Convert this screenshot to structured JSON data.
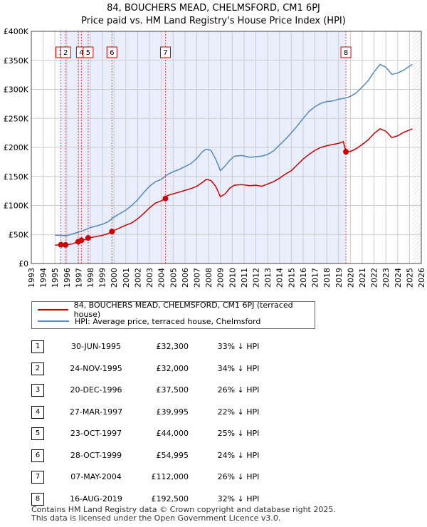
{
  "title_line1": "84, BOUCHERS MEAD, CHELMSFORD, CM1 6PJ",
  "title_line2": "Price paid vs. HM Land Registry's House Price Index (HPI)",
  "colors": {
    "property": "#cc0000",
    "hpi": "#5588bb",
    "shade": "#e8eefb",
    "grid": "#cccccc"
  },
  "chart_data": {
    "type": "line",
    "title": "84, BOUCHERS MEAD, CHELMSFORD, CM1 6PJ",
    "subtitle": "Price paid vs. HM Land Registry's House Price Index (HPI)",
    "xlabel": "",
    "ylabel": "",
    "xlim": [
      1993,
      2026
    ],
    "ylim": [
      0,
      400000
    ],
    "x_ticks": [
      1993,
      1994,
      1995,
      1996,
      1997,
      1998,
      1999,
      2000,
      2001,
      2002,
      2003,
      2004,
      2005,
      2006,
      2007,
      2008,
      2009,
      2010,
      2011,
      2012,
      2013,
      2014,
      2015,
      2016,
      2017,
      2018,
      2019,
      2020,
      2021,
      2022,
      2023,
      2024,
      2025,
      2026
    ],
    "y_ticks": [
      0,
      50000,
      100000,
      150000,
      200000,
      250000,
      300000,
      350000,
      400000
    ],
    "y_tick_labels": [
      "£0",
      "£50K",
      "£100K",
      "£150K",
      "£200K",
      "£250K",
      "£300K",
      "£350K",
      "£400K"
    ],
    "shaded_range": [
      1995.5,
      2019.62
    ],
    "data_end": 2025.25,
    "series": [
      {
        "name": "84, BOUCHERS MEAD, CHELMSFORD, CM1 6PJ (terraced house)",
        "color": "#cc0000",
        "points": [
          [
            1995.0,
            31500
          ],
          [
            1995.5,
            32300
          ],
          [
            1996.0,
            32000
          ],
          [
            1996.5,
            34000
          ],
          [
            1997.0,
            38000
          ],
          [
            1997.5,
            41000
          ],
          [
            1998.0,
            44500
          ],
          [
            1998.5,
            46500
          ],
          [
            1999.0,
            48500
          ],
          [
            1999.5,
            51500
          ],
          [
            2000.0,
            57000
          ],
          [
            2000.5,
            61500
          ],
          [
            2001.0,
            66000
          ],
          [
            2001.5,
            70000
          ],
          [
            2002.0,
            77000
          ],
          [
            2002.5,
            86000
          ],
          [
            2003.0,
            96000
          ],
          [
            2003.5,
            104000
          ],
          [
            2004.0,
            108000
          ],
          [
            2004.35,
            112000
          ],
          [
            2004.5,
            117000
          ],
          [
            2005.0,
            120000
          ],
          [
            2005.5,
            123000
          ],
          [
            2006.0,
            126000
          ],
          [
            2006.5,
            129000
          ],
          [
            2007.0,
            133000
          ],
          [
            2007.5,
            140000
          ],
          [
            2007.8,
            145000
          ],
          [
            2008.2,
            143000
          ],
          [
            2008.6,
            133000
          ],
          [
            2009.0,
            115000
          ],
          [
            2009.4,
            120000
          ],
          [
            2009.8,
            130000
          ],
          [
            2010.2,
            135000
          ],
          [
            2010.8,
            136000
          ],
          [
            2011.5,
            134000
          ],
          [
            2012.0,
            135000
          ],
          [
            2012.5,
            133000
          ],
          [
            2013.0,
            137000
          ],
          [
            2013.5,
            141000
          ],
          [
            2014.0,
            147000
          ],
          [
            2014.5,
            154000
          ],
          [
            2015.0,
            160000
          ],
          [
            2015.5,
            170000
          ],
          [
            2016.0,
            180000
          ],
          [
            2016.5,
            188000
          ],
          [
            2017.0,
            195000
          ],
          [
            2017.5,
            200000
          ],
          [
            2018.0,
            203000
          ],
          [
            2018.5,
            205000
          ],
          [
            2019.0,
            207000
          ],
          [
            2019.4,
            210000
          ],
          [
            2019.62,
            192500
          ],
          [
            2020.0,
            193000
          ],
          [
            2020.5,
            198000
          ],
          [
            2021.0,
            205000
          ],
          [
            2021.5,
            213000
          ],
          [
            2022.0,
            224000
          ],
          [
            2022.5,
            232000
          ],
          [
            2023.0,
            228000
          ],
          [
            2023.5,
            217000
          ],
          [
            2024.0,
            220000
          ],
          [
            2024.5,
            226000
          ],
          [
            2025.0,
            230000
          ],
          [
            2025.25,
            232000
          ]
        ]
      },
      {
        "name": "HPI: Average price, terraced house, Chelmsford",
        "color": "#5588bb",
        "points": [
          [
            1995.0,
            49000
          ],
          [
            1995.5,
            48500
          ],
          [
            1996.0,
            48000
          ],
          [
            1996.5,
            51000
          ],
          [
            1997.0,
            54000
          ],
          [
            1997.5,
            57500
          ],
          [
            1998.0,
            62000
          ],
          [
            1998.5,
            64500
          ],
          [
            1999.0,
            67500
          ],
          [
            1999.5,
            72000
          ],
          [
            2000.0,
            80000
          ],
          [
            2000.5,
            86000
          ],
          [
            2001.0,
            92000
          ],
          [
            2001.5,
            100000
          ],
          [
            2002.0,
            110000
          ],
          [
            2002.5,
            122000
          ],
          [
            2003.0,
            133000
          ],
          [
            2003.5,
            141000
          ],
          [
            2004.0,
            145000
          ],
          [
            2004.5,
            153000
          ],
          [
            2005.0,
            158000
          ],
          [
            2005.5,
            162000
          ],
          [
            2006.0,
            167000
          ],
          [
            2006.5,
            172000
          ],
          [
            2007.0,
            181000
          ],
          [
            2007.5,
            193000
          ],
          [
            2007.8,
            197000
          ],
          [
            2008.2,
            195000
          ],
          [
            2008.6,
            180000
          ],
          [
            2009.0,
            160000
          ],
          [
            2009.4,
            168000
          ],
          [
            2009.8,
            178000
          ],
          [
            2010.2,
            185000
          ],
          [
            2010.8,
            186000
          ],
          [
            2011.5,
            183000
          ],
          [
            2012.0,
            184000
          ],
          [
            2012.5,
            185000
          ],
          [
            2013.0,
            188000
          ],
          [
            2013.5,
            194000
          ],
          [
            2014.0,
            204000
          ],
          [
            2014.5,
            214000
          ],
          [
            2015.0,
            225000
          ],
          [
            2015.5,
            237000
          ],
          [
            2016.0,
            250000
          ],
          [
            2016.5,
            262000
          ],
          [
            2017.0,
            270000
          ],
          [
            2017.5,
            276000
          ],
          [
            2018.0,
            279000
          ],
          [
            2018.5,
            280000
          ],
          [
            2019.0,
            283000
          ],
          [
            2019.62,
            285000
          ],
          [
            2020.0,
            288000
          ],
          [
            2020.5,
            294000
          ],
          [
            2021.0,
            304000
          ],
          [
            2021.5,
            315000
          ],
          [
            2022.0,
            330000
          ],
          [
            2022.5,
            343000
          ],
          [
            2023.0,
            338000
          ],
          [
            2023.5,
            326000
          ],
          [
            2024.0,
            328000
          ],
          [
            2024.5,
            333000
          ],
          [
            2025.0,
            340000
          ],
          [
            2025.25,
            343000
          ]
        ]
      }
    ],
    "sales": [
      {
        "label": "1",
        "x": 1995.5,
        "price": 32300
      },
      {
        "label": "2",
        "x": 1995.9,
        "price": 32000
      },
      {
        "label": "3",
        "x": 1996.97,
        "price": 37500
      },
      {
        "label": "4",
        "x": 1997.24,
        "price": 39995
      },
      {
        "label": "5",
        "x": 1997.81,
        "price": 44000
      },
      {
        "label": "6",
        "x": 1999.82,
        "price": 54995
      },
      {
        "label": "7",
        "x": 2004.35,
        "price": 112000
      },
      {
        "label": "8",
        "x": 2019.62,
        "price": 192500
      }
    ],
    "marker_labels_shown": [
      "1",
      "2",
      "4",
      "5",
      "6",
      "7",
      "8"
    ]
  },
  "legend": {
    "property_label": "84, BOUCHERS MEAD, CHELMSFORD, CM1 6PJ (terraced house)",
    "hpi_label": "HPI: Average price, terraced house, Chelmsford"
  },
  "transactions": [
    {
      "num": "1",
      "date": "30-JUN-1995",
      "price": "£32,300",
      "hpi": "33% ↓ HPI"
    },
    {
      "num": "2",
      "date": "24-NOV-1995",
      "price": "£32,000",
      "hpi": "34% ↓ HPI"
    },
    {
      "num": "3",
      "date": "20-DEC-1996",
      "price": "£37,500",
      "hpi": "26% ↓ HPI"
    },
    {
      "num": "4",
      "date": "27-MAR-1997",
      "price": "£39,995",
      "hpi": "22% ↓ HPI"
    },
    {
      "num": "5",
      "date": "23-OCT-1997",
      "price": "£44,000",
      "hpi": "25% ↓ HPI"
    },
    {
      "num": "6",
      "date": "28-OCT-1999",
      "price": "£54,995",
      "hpi": "24% ↓ HPI"
    },
    {
      "num": "7",
      "date": "07-MAY-2004",
      "price": "£112,000",
      "hpi": "26% ↓ HPI"
    },
    {
      "num": "8",
      "date": "16-AUG-2019",
      "price": "£192,500",
      "hpi": "32% ↓ HPI"
    }
  ],
  "footer": {
    "line1": "Contains HM Land Registry data © Crown copyright and database right 2025.",
    "line2": "This data is licensed under the Open Government Licence v3.0."
  }
}
